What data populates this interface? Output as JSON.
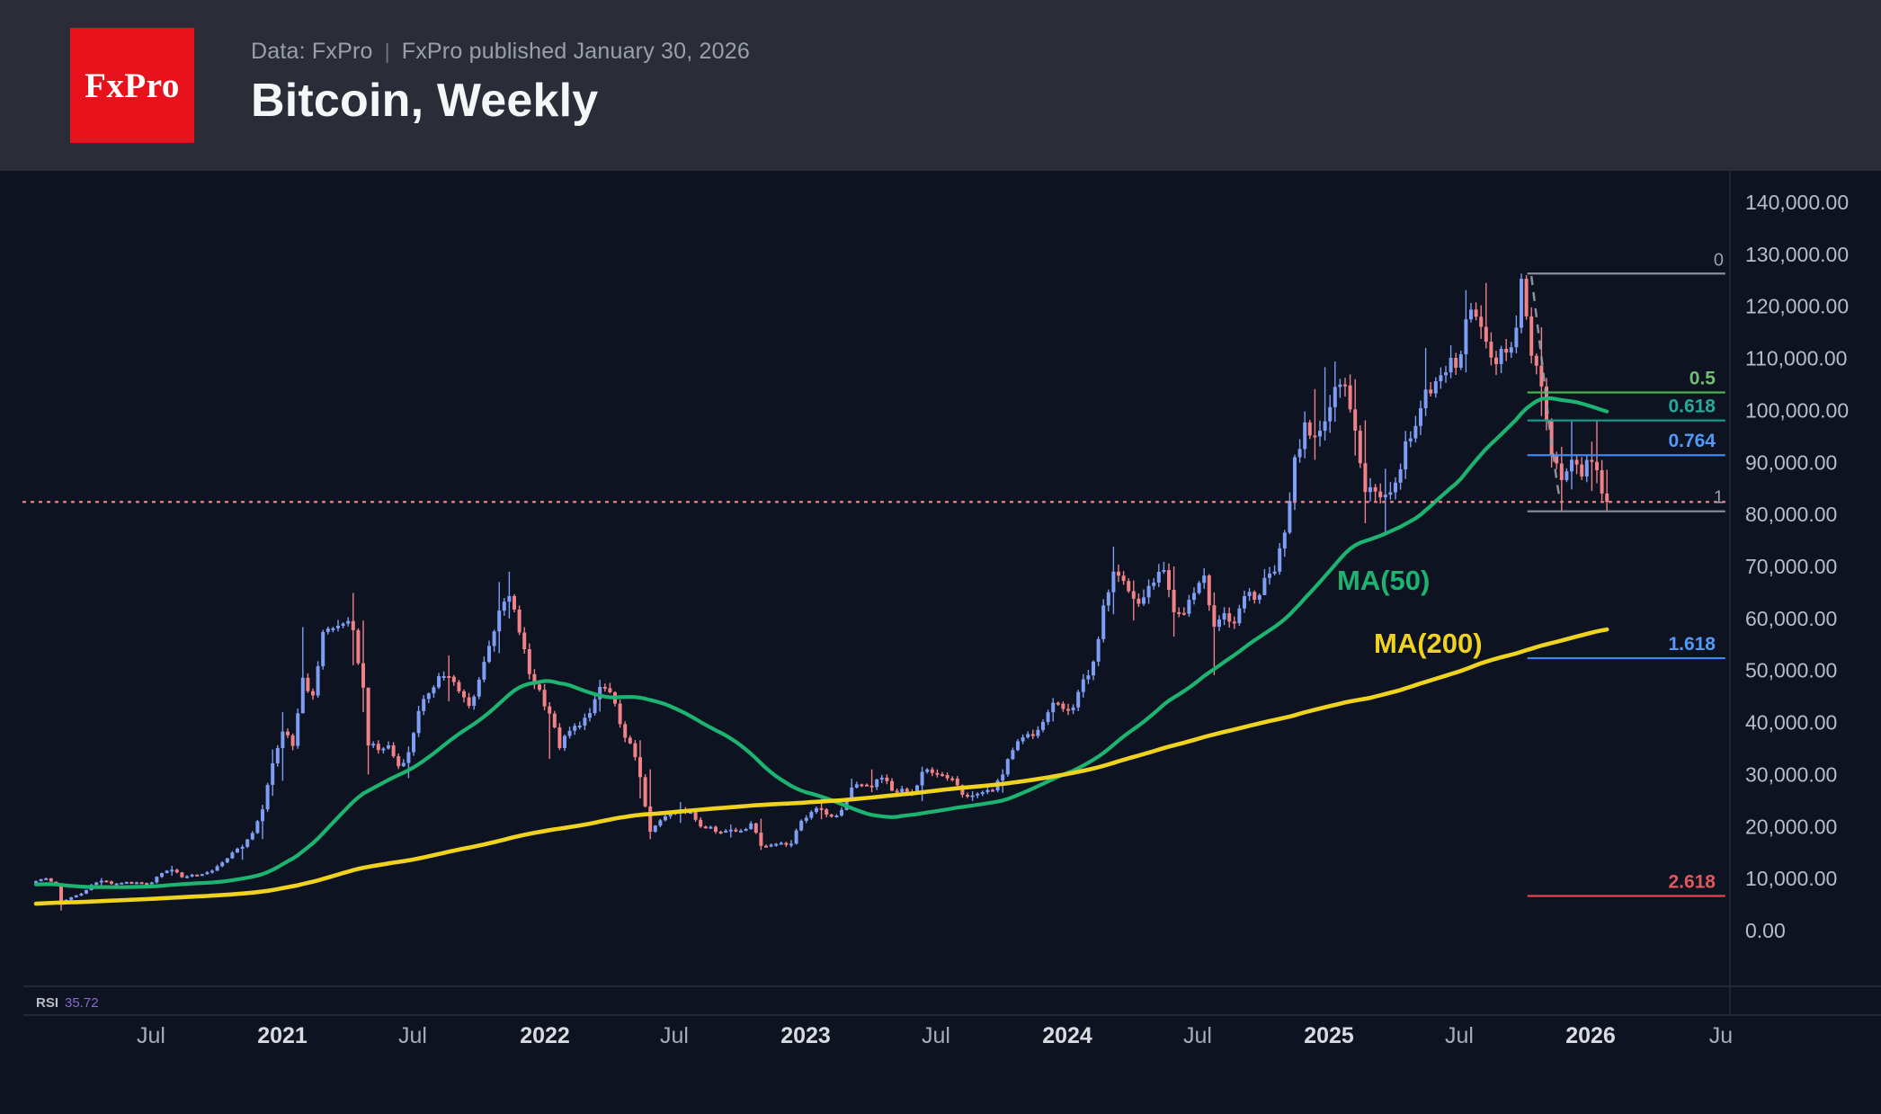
{
  "header": {
    "logo_text": "FxPro",
    "logo_color": "#e8121c",
    "source_prefix": "Data: FxPro",
    "separator": "|",
    "published": "FxPro published January 30, 2026",
    "title": "Bitcoin, Weekly"
  },
  "colors": {
    "background": "#0d1320",
    "header_background": "#2a2d38",
    "candle_up": "#7d9ef4",
    "candle_down": "#ef8187",
    "ma50": "#1cb470",
    "ma200": "#efd31e",
    "fib_gray": "#8b9099",
    "current_price": "#ee8186",
    "axis_text": "#b9bdc5",
    "axis_month": "#a8acb6",
    "axis_year": "#d9dbe0",
    "divider": "#2c313c",
    "axis_border": "#262b36",
    "rsi_label": "#b9bdc6",
    "rsi_value": "#8b68d6",
    "projection_dash": "#99a0aa"
  },
  "chart_data": {
    "type": "candlestick",
    "symbol": "Bitcoin",
    "timeframe": "Weekly",
    "grid": false,
    "legend_position": "none",
    "y_axis": {
      "min": 0,
      "max": 140000,
      "tick_step": 10000,
      "ticks": [
        {
          "value": 140000,
          "label": "140,000.00"
        },
        {
          "value": 130000,
          "label": "130,000.00"
        },
        {
          "value": 120000,
          "label": "120,000.00"
        },
        {
          "value": 110000,
          "label": "110,000.00"
        },
        {
          "value": 100000,
          "label": "100,000.00"
        },
        {
          "value": 90000,
          "label": "90,000.00"
        },
        {
          "value": 80000,
          "label": "80,000.00"
        },
        {
          "value": 70000,
          "label": "70,000.00"
        },
        {
          "value": 60000,
          "label": "60,000.00"
        },
        {
          "value": 50000,
          "label": "50,000.00"
        },
        {
          "value": 40000,
          "label": "40,000.00"
        },
        {
          "value": 30000,
          "label": "30,000.00"
        },
        {
          "value": 20000,
          "label": "20,000.00"
        },
        {
          "value": 10000,
          "label": "10,000.00"
        },
        {
          "value": 0,
          "label": "0.00"
        }
      ]
    },
    "x_axis": {
      "unit": "weeks from 2020-02-03",
      "labels": [
        {
          "t": 22.9,
          "label": "Jul",
          "bold": false
        },
        {
          "t": 49.0,
          "label": "2021",
          "bold": true
        },
        {
          "t": 74.8,
          "label": "Jul",
          "bold": false
        },
        {
          "t": 101.0,
          "label": "2022",
          "bold": true
        },
        {
          "t": 126.8,
          "label": "Jul",
          "bold": false
        },
        {
          "t": 152.9,
          "label": "2023",
          "bold": true
        },
        {
          "t": 178.8,
          "label": "Jul",
          "bold": false
        },
        {
          "t": 204.8,
          "label": "2024",
          "bold": true
        },
        {
          "t": 230.7,
          "label": "Jul",
          "bold": false
        },
        {
          "t": 256.8,
          "label": "2025",
          "bold": true
        },
        {
          "t": 282.7,
          "label": "Jul",
          "bold": false
        },
        {
          "t": 308.8,
          "label": "2026",
          "bold": true
        },
        {
          "t": 334.7,
          "label": "Ju",
          "bold": false
        }
      ]
    },
    "moving_averages": [
      {
        "label": "MA(50)",
        "period": 50
      },
      {
        "label": "MA(200)",
        "period": 200
      }
    ],
    "fibonacci": {
      "high": 126300,
      "low": 80600,
      "week_start": 296.2,
      "week_end": 335.5,
      "levels": [
        {
          "label": "0",
          "ratio": 0,
          "price": 126300,
          "line_color": "#8b9099",
          "label_color": "#9aa0ab"
        },
        {
          "label": "0.5",
          "ratio": 0.5,
          "price": 103450,
          "line_color": "#4caf50",
          "label_color": "#70bf73"
        },
        {
          "label": "0.618",
          "ratio": 0.618,
          "price": 98060,
          "line_color": "#14998b",
          "label_color": "#27a99b"
        },
        {
          "label": "0.764",
          "ratio": 0.764,
          "price": 91390,
          "line_color": "#3e86f4",
          "label_color": "#539af8"
        },
        {
          "label": "1",
          "ratio": 1,
          "price": 80600,
          "line_color": "#8b9099",
          "label_color": "#9aa0ab"
        },
        {
          "label": "1.618",
          "ratio": 1.618,
          "price": 52360,
          "line_color": "#3e86f4",
          "label_color": "#539af8"
        },
        {
          "label": "2.618",
          "ratio": 2.618,
          "price": 6660,
          "line_color": "#e3444d",
          "label_color": "#e4565e"
        }
      ]
    },
    "current_price_line": {
      "price": 82400,
      "style": "dotted"
    },
    "projection_dash": {
      "points": [
        [
          297.0,
          125800
        ],
        [
          298.2,
          116500
        ],
        [
          299.4,
          107000
        ],
        [
          300.5,
          97500
        ],
        [
          301.6,
          89500
        ],
        [
          302.4,
          84300
        ],
        [
          303.0,
          82600
        ]
      ]
    },
    "rsi": {
      "label": "RSI",
      "value": "35.72"
    },
    "price_anchors": {
      "note": "week index, close, optional high, low (USD)",
      "history": [
        [
          -200,
          390
        ],
        [
          -180,
          580
        ],
        [
          -160,
          760
        ],
        [
          -150,
          1000
        ],
        [
          -140,
          1900
        ],
        [
          -130,
          2700
        ],
        [
          -120,
          4300
        ],
        [
          -112,
          7000
        ],
        [
          -108,
          15000
        ],
        [
          -105,
          13800
        ],
        [
          -100,
          9000
        ],
        [
          -95,
          8000
        ],
        [
          -90,
          6700
        ],
        [
          -85,
          6300
        ],
        [
          -80,
          6400
        ],
        [
          -75,
          6300
        ],
        [
          -70,
          4000
        ],
        [
          -65,
          3500
        ],
        [
          -60,
          3800
        ],
        [
          -55,
          5200
        ],
        [
          -50,
          8000
        ],
        [
          -45,
          10800
        ],
        [
          -40,
          10300
        ],
        [
          -35,
          9500
        ],
        [
          -30,
          8200
        ],
        [
          -25,
          7500
        ],
        [
          -20,
          7300
        ],
        [
          -15,
          8700
        ],
        [
          -10,
          8000
        ],
        [
          -5,
          9600
        ],
        [
          -1,
          9450
        ]
      ],
      "weeks": [
        [
          0,
          9500
        ],
        [
          2,
          10050
        ],
        [
          4,
          8800
        ],
        [
          5,
          5300,
          9150,
          3850
        ],
        [
          7,
          6400
        ],
        [
          9,
          7100
        ],
        [
          11,
          8800
        ],
        [
          13,
          9600,
          10100,
          8100
        ],
        [
          15,
          9000
        ],
        [
          17,
          9200
        ],
        [
          19,
          9100
        ],
        [
          21,
          9150
        ],
        [
          23,
          9250
        ],
        [
          25,
          11050
        ],
        [
          27,
          11700,
          12450,
          10550
        ],
        [
          29,
          10250
        ],
        [
          31,
          10750
        ],
        [
          33,
          10850
        ],
        [
          35,
          11500
        ],
        [
          37,
          13100
        ],
        [
          39,
          15000
        ],
        [
          41,
          16100,
          16500,
          13600
        ],
        [
          43,
          18750
        ],
        [
          45,
          23300,
          24200,
          17600
        ],
        [
          47,
          32150,
          34800,
          25900
        ],
        [
          49,
          38250,
          42000,
          28800
        ],
        [
          51,
          35500
        ],
        [
          53,
          48600,
          58350,
          42800
        ],
        [
          55,
          45200
        ],
        [
          57,
          57400
        ],
        [
          59,
          58100
        ],
        [
          61,
          59000
        ],
        [
          63,
          57750,
          64900,
          51000
        ],
        [
          65,
          46700,
          59600,
          42000
        ],
        [
          66,
          35600,
          42900,
          30000
        ],
        [
          68,
          34700
        ],
        [
          70,
          35600
        ],
        [
          72,
          31600
        ],
        [
          74,
          34300,
          35400,
          29300
        ],
        [
          76,
          42200
        ],
        [
          78,
          45600
        ],
        [
          80,
          48900
        ],
        [
          82,
          48800,
          52900,
          44100
        ],
        [
          84,
          46000
        ],
        [
          86,
          43200
        ],
        [
          88,
          48250
        ],
        [
          90,
          54700
        ],
        [
          92,
          61500,
          67000,
          53300
        ],
        [
          94,
          64300,
          69000,
          60000
        ],
        [
          96,
          57300
        ],
        [
          98,
          49300
        ],
        [
          100,
          46300
        ],
        [
          102,
          41700,
          43900,
          33000
        ],
        [
          104,
          35100
        ],
        [
          106,
          38400
        ],
        [
          108,
          39400
        ],
        [
          110,
          41800
        ],
        [
          112,
          46850,
          48200,
          42100
        ],
        [
          114,
          45800
        ],
        [
          116,
          39700
        ],
        [
          118,
          36000
        ],
        [
          120,
          29500,
          36600,
          25400
        ],
        [
          122,
          19000,
          31000,
          17600
        ],
        [
          124,
          21200
        ],
        [
          126,
          22500
        ],
        [
          128,
          23300,
          24700,
          20700
        ],
        [
          130,
          22800
        ],
        [
          132,
          20000
        ],
        [
          134,
          19950
        ],
        [
          136,
          18900
        ],
        [
          138,
          19400,
          20400,
          17900
        ],
        [
          140,
          19200
        ],
        [
          142,
          20600
        ],
        [
          144,
          16300,
          21500,
          15500
        ],
        [
          146,
          16500
        ],
        [
          148,
          16850
        ],
        [
          150,
          16700,
          17400,
          16000
        ],
        [
          152,
          21100
        ],
        [
          154,
          22800
        ],
        [
          156,
          23300,
          25300,
          21400
        ],
        [
          158,
          21900
        ],
        [
          160,
          23200
        ],
        [
          162,
          27500,
          29200,
          24800
        ],
        [
          164,
          28050
        ],
        [
          166,
          27600,
          31000,
          26600
        ],
        [
          168,
          29400
        ],
        [
          170,
          26900
        ],
        [
          172,
          27250
        ],
        [
          174,
          26300
        ],
        [
          176,
          30500,
          31500,
          24900
        ],
        [
          178,
          30300
        ],
        [
          180,
          29900
        ],
        [
          182,
          29200
        ],
        [
          184,
          26100
        ],
        [
          186,
          26000,
          26800,
          24900
        ],
        [
          188,
          26600
        ],
        [
          190,
          26950
        ],
        [
          192,
          30000,
          31000,
          26500
        ],
        [
          194,
          34700
        ],
        [
          196,
          37150
        ],
        [
          198,
          37400
        ],
        [
          200,
          40100
        ],
        [
          202,
          43800,
          44700,
          40200
        ],
        [
          204,
          42600
        ],
        [
          206,
          42900
        ],
        [
          208,
          48300
        ],
        [
          210,
          51700
        ],
        [
          212,
          62500
        ],
        [
          214,
          69000,
          73800,
          60800
        ],
        [
          216,
          67200
        ],
        [
          218,
          63800,
          67300,
          59600
        ],
        [
          220,
          64050
        ],
        [
          222,
          66900
        ],
        [
          224,
          69300
        ],
        [
          226,
          61200,
          70000,
          56500
        ],
        [
          228,
          60900
        ],
        [
          230,
          64900
        ],
        [
          232,
          68250
        ],
        [
          234,
          58400,
          65000,
          49100
        ],
        [
          236,
          61000
        ],
        [
          238,
          59100
        ],
        [
          240,
          64300
        ],
        [
          242,
          63600
        ],
        [
          244,
          67800,
          69500,
          65100
        ],
        [
          246,
          69000
        ],
        [
          248,
          76500
        ],
        [
          250,
          91000
        ],
        [
          252,
          97700,
          99800,
          90800
        ],
        [
          254,
          95000,
          104100,
          90500
        ],
        [
          256,
          97900,
          108300,
          94200
        ],
        [
          258,
          104500,
          109400,
          97800
        ],
        [
          260,
          104800
        ],
        [
          262,
          96100,
          106000,
          91300
        ],
        [
          264,
          84300,
          98100,
          78300
        ],
        [
          266,
          84400
        ],
        [
          268,
          83800,
          88800,
          76600
        ],
        [
          270,
          86100
        ],
        [
          272,
          94050
        ],
        [
          274,
          97000
        ],
        [
          276,
          104000,
          112000,
          98900
        ],
        [
          278,
          105600
        ],
        [
          280,
          107300
        ],
        [
          282,
          108200
        ],
        [
          284,
          117500,
          123100,
          107300
        ],
        [
          286,
          118000
        ],
        [
          288,
          113200,
          124500,
          111900
        ],
        [
          290,
          108900
        ],
        [
          292,
          111100
        ],
        [
          294,
          115900
        ],
        [
          295,
          125300,
          126300,
          114800
        ],
        [
          297,
          110500
        ],
        [
          299,
          104600,
          116000,
          98900
        ],
        [
          301,
          91300,
          98500,
          89000
        ],
        [
          303,
          86600,
          93000,
          80500
        ],
        [
          305,
          90500,
          98200,
          84800
        ],
        [
          307,
          87300
        ],
        [
          309,
          90100,
          94000,
          84500
        ],
        [
          310,
          88500,
          98000,
          86000
        ],
        [
          312,
          82400,
          88600,
          80500
        ]
      ]
    }
  }
}
